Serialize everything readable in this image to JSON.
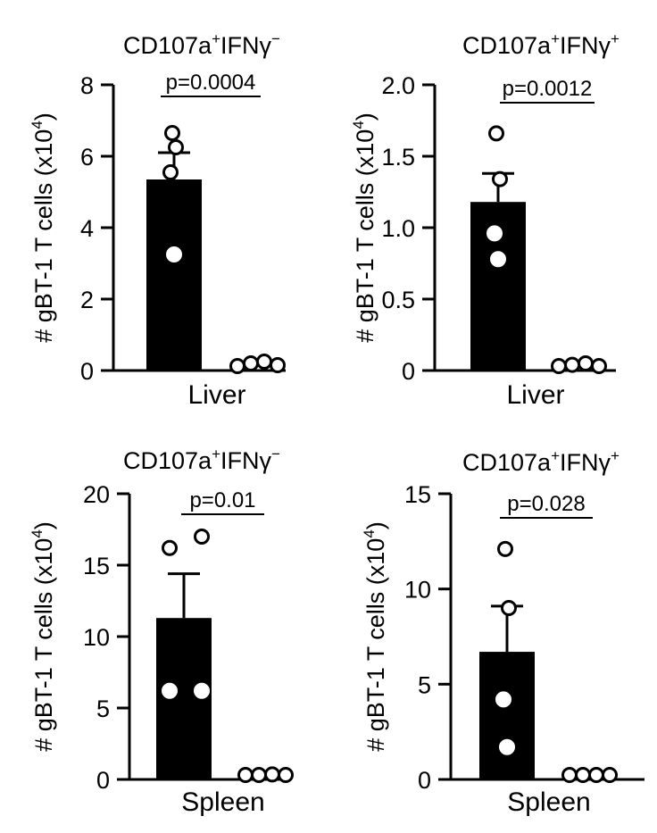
{
  "chart_data": [
    {
      "type": "bar",
      "title": {
        "base": "CD107a",
        "sup1": "+",
        "mid": "IFNγ",
        "sup2": "−"
      },
      "ylabel": {
        "main": "# gBT-1 T cells (x10",
        "sup": "4",
        "close": ")"
      },
      "xlabel": "Liver",
      "ylim": [
        0,
        8
      ],
      "yticks": [
        "0",
        "2",
        "4",
        "6",
        "8"
      ],
      "pvalue": "p=0.0004",
      "bars": [
        {
          "mean": 5.35,
          "sem": 0.75,
          "points": [
            6.65,
            6.25,
            5.55,
            3.25
          ]
        },
        {
          "mean": 0.12,
          "sem": 0,
          "points": [
            0.1,
            0.2,
            0.25,
            0.15
          ]
        }
      ]
    },
    {
      "type": "bar",
      "title": {
        "base": "CD107a",
        "sup1": "+",
        "mid": "IFNγ",
        "sup2": "+"
      },
      "ylabel": {
        "main": "# gBT-1 T cells (x10",
        "sup": "4",
        "close": ")"
      },
      "xlabel": "Liver",
      "ylim": [
        0,
        2.0
      ],
      "yticks": [
        "0",
        "0.5",
        "1.0",
        "1.5",
        "2.0"
      ],
      "pvalue": "p=0.0012",
      "bars": [
        {
          "mean": 1.18,
          "sem": 0.2,
          "points": [
            1.66,
            1.34,
            0.96,
            0.78
          ]
        },
        {
          "mean": 0.03,
          "sem": 0,
          "points": [
            0.02,
            0.04,
            0.05,
            0.03
          ]
        }
      ]
    },
    {
      "type": "bar",
      "title": {
        "base": "CD107a",
        "sup1": "+",
        "mid": "IFNγ",
        "sup2": "−"
      },
      "ylabel": {
        "main": "# gBT-1 T cells (x10",
        "sup": "4",
        "close": ")"
      },
      "xlabel": "Spleen",
      "ylim": [
        0,
        20
      ],
      "yticks": [
        "0",
        "5",
        "10",
        "15",
        "20"
      ],
      "pvalue": "p=0.01",
      "bars": [
        {
          "mean": 11.3,
          "sem": 3.1,
          "points": [
            16.2,
            17.0,
            6.2,
            6.2
          ]
        },
        {
          "mean": 0.2,
          "sem": 0,
          "points": [
            0.1,
            0.3,
            0.35,
            0.2
          ]
        }
      ]
    },
    {
      "type": "bar",
      "title": {
        "base": "CD107a",
        "sup1": "+",
        "mid": "IFNγ",
        "sup2": "+"
      },
      "ylabel": {
        "main": "# gBT-1 T cells (x10",
        "sup": "4",
        "close": ")"
      },
      "xlabel": "Spleen",
      "ylim": [
        0,
        15
      ],
      "yticks": [
        "0",
        "5",
        "10",
        "15"
      ],
      "pvalue": "p=0.028",
      "bars": [
        {
          "mean": 6.7,
          "sem": 2.4,
          "points": [
            12.1,
            9.0,
            4.2,
            1.7
          ]
        },
        {
          "mean": 0.05,
          "sem": 0,
          "points": [
            0.05,
            0.05,
            0.05,
            0.05
          ]
        }
      ]
    }
  ]
}
